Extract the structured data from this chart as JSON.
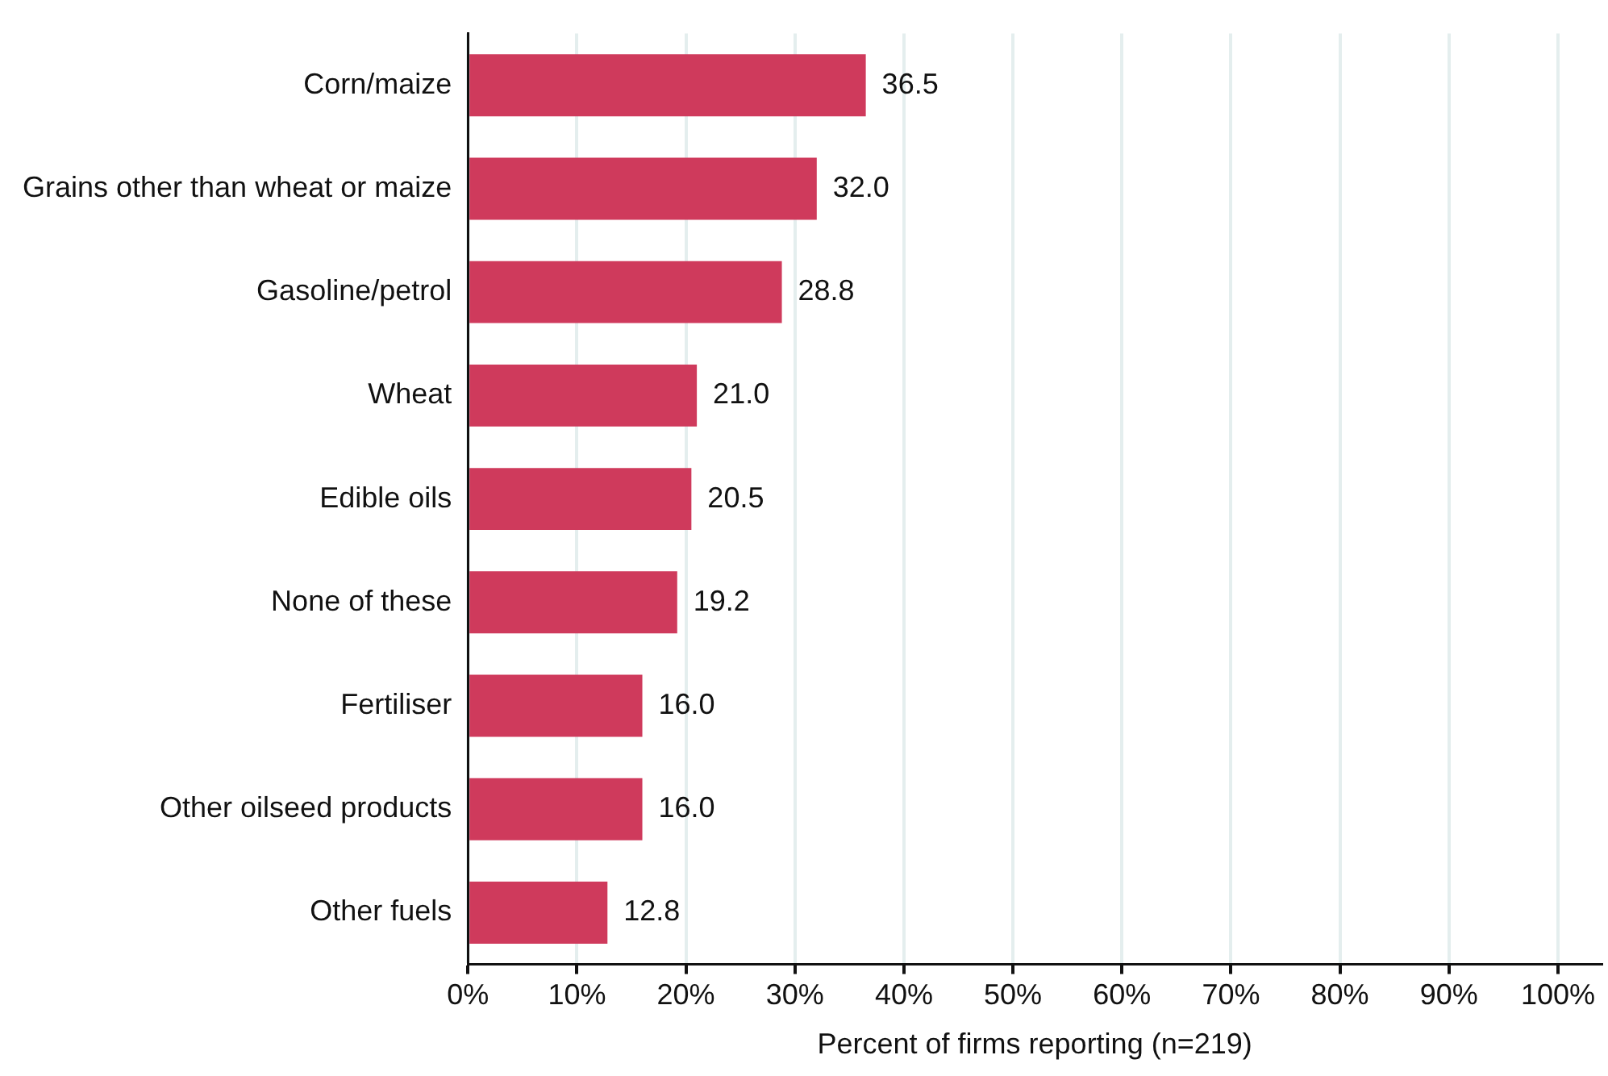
{
  "chart_data": {
    "type": "bar",
    "orientation": "horizontal",
    "xlabel": "Percent of firms reporting (n=219)",
    "categories": [
      "Corn/maize",
      "Grains other than wheat or maize",
      "Gasoline/petrol",
      "Wheat",
      "Edible oils",
      "None of these",
      "Fertiliser",
      "Other oilseed products",
      "Other fuels"
    ],
    "values": [
      36.5,
      32.0,
      28.8,
      21.0,
      20.5,
      19.2,
      16.0,
      16.0,
      12.8
    ],
    "value_labels": [
      "36.5",
      "32.0",
      "28.8",
      "21.0",
      "20.5",
      "19.2",
      "16.0",
      "16.0",
      "12.8"
    ],
    "color": "#cf3a5c",
    "xlim": [
      0,
      104
    ],
    "xticks": [
      {
        "value": 0,
        "label": "0%"
      },
      {
        "value": 10,
        "label": "10%"
      },
      {
        "value": 20,
        "label": "20%"
      },
      {
        "value": 30,
        "label": "30%"
      },
      {
        "value": 40,
        "label": "40%"
      },
      {
        "value": 50,
        "label": "50%"
      },
      {
        "value": 60,
        "label": "60%"
      },
      {
        "value": 70,
        "label": "70%"
      },
      {
        "value": 80,
        "label": "80%"
      },
      {
        "value": 90,
        "label": "90%"
      },
      {
        "value": 100,
        "label": "100%"
      }
    ],
    "grid": "x"
  }
}
